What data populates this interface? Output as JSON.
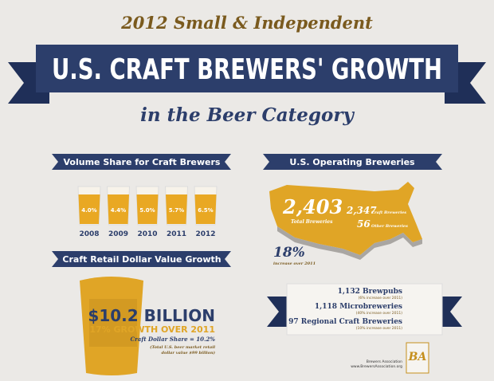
{
  "header": {
    "kicker": "2012 Small & Independent",
    "title": "U.S. CRAFT BREWERS' GROWTH",
    "subtitle": "in the Beer Category"
  },
  "volume_share": {
    "heading": "Volume Share for Craft Brewers",
    "items": [
      {
        "year": "2008",
        "share": "4.0%"
      },
      {
        "year": "2009",
        "share": "4.4%"
      },
      {
        "year": "2010",
        "share": "5.0%"
      },
      {
        "year": "2011",
        "share": "5.7%"
      },
      {
        "year": "2012",
        "share": "6.5%"
      }
    ]
  },
  "breweries": {
    "heading": "U.S. Operating Breweries",
    "total": "2,403",
    "total_label": "Total Breweries",
    "craft": "2,347",
    "craft_label": "Craft Breweries",
    "other": "56",
    "other_label": "Other Breweries",
    "growth": "18%",
    "growth_label": "increase over 2011"
  },
  "dollar_value": {
    "heading": "Craft Retail Dollar Value Growth",
    "amount": "$10.2 BILLION",
    "growth": "17% GROWTH OVER 2011",
    "share": "Craft Dollar Share = 10.2%",
    "note_1": "(Total U.S. beer market retail",
    "note_2": "dollar value $99 billion)"
  },
  "types": [
    {
      "label": "1,132 Brewpubs",
      "note": "(6% increase over 2011)"
    },
    {
      "label": "1,118 Microbreweries",
      "note": "(40% increase over 2011)"
    },
    {
      "label": "97 Regional Craft Breweries",
      "note": "(10% increase over 2011)"
    }
  ],
  "footer": {
    "org": "Brewers Association",
    "url": "www.BrewersAssociation.org",
    "logo": "BA"
  }
}
